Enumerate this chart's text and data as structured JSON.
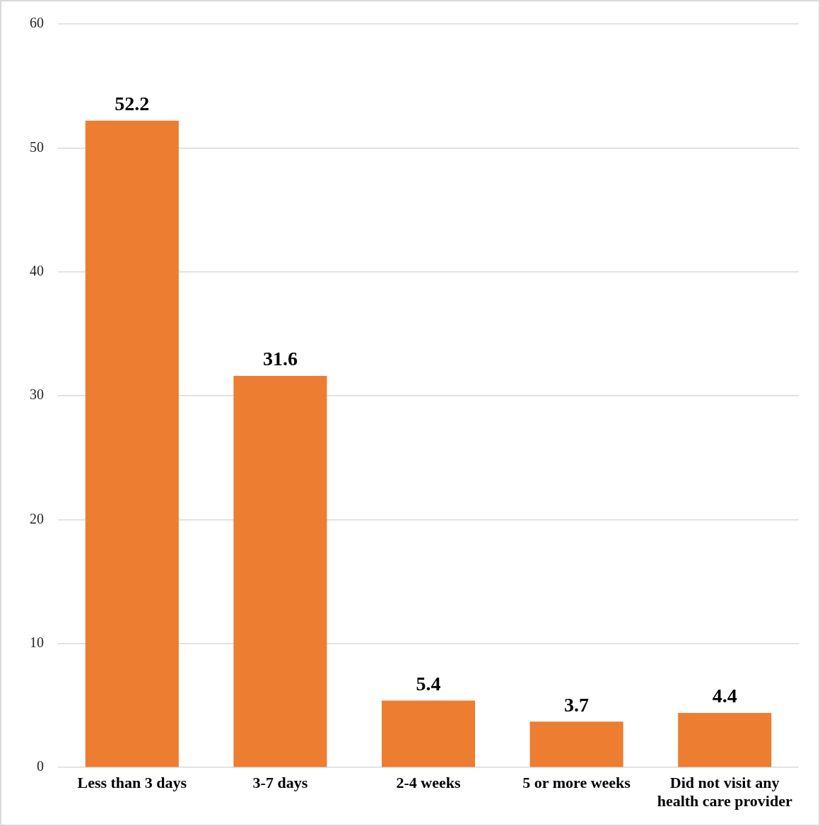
{
  "chart_data": {
    "type": "bar",
    "categories": [
      "Less than 3 days",
      "3-7 days",
      "2-4 weeks",
      "5 or more weeks",
      "Did not visit any health care provider"
    ],
    "values": [
      52.2,
      31.6,
      5.4,
      3.7,
      4.4
    ],
    "color": "#ed7d31",
    "ylim": [
      0,
      60
    ],
    "yticks": [
      0,
      10,
      20,
      30,
      40,
      50,
      60
    ],
    "grid": "y",
    "data_labels": true,
    "legend": false
  }
}
